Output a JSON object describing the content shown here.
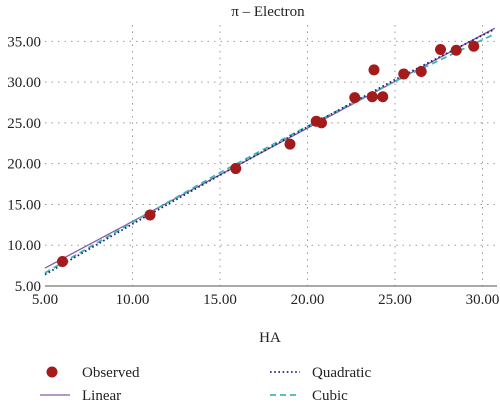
{
  "chart_data": {
    "type": "scatter",
    "title": "π – Electron",
    "xlabel": "HA",
    "ylabel": "",
    "xlim": [
      5,
      31
    ],
    "ylim": [
      5,
      37
    ],
    "x_ticks": [
      5,
      10,
      15,
      20,
      25,
      30
    ],
    "x_tick_labels": [
      "5.00",
      "10.00",
      "15.00",
      "20.00",
      "25.00",
      "30.00"
    ],
    "y_ticks": [
      5,
      10,
      15,
      20,
      25,
      30,
      35
    ],
    "y_tick_labels": [
      "5.00",
      "10.00",
      "15.00",
      "20.00",
      "25.00",
      "30.00",
      "35.00"
    ],
    "grid": true,
    "legend_position": "bottom",
    "series": [
      {
        "name": "Observed",
        "kind": "points",
        "color": "#a31b1b",
        "x": [
          6.0,
          11.0,
          15.9,
          19.0,
          20.5,
          20.8,
          22.7,
          23.7,
          23.8,
          24.3,
          25.5,
          26.5,
          27.6,
          28.5,
          29.5
        ],
        "y": [
          8.0,
          13.7,
          19.4,
          22.4,
          25.2,
          25.0,
          28.1,
          28.2,
          31.5,
          28.2,
          31.0,
          31.3,
          34.0,
          33.9,
          34.4
        ]
      },
      {
        "name": "Linear",
        "kind": "line",
        "color": "#8a5aa8",
        "dash": "solid",
        "x": [
          5,
          30.7
        ],
        "y": [
          7.2,
          36.6
        ]
      },
      {
        "name": "Quadratic",
        "kind": "line",
        "color": "#1a237e",
        "dash": "dotted",
        "x": [
          5,
          10,
          15,
          20,
          25,
          30.7
        ],
        "y": [
          6.4,
          12.6,
          18.6,
          24.5,
          30.3,
          36.5
        ]
      },
      {
        "name": "Cubic",
        "kind": "line",
        "color": "#3fb9b0",
        "dash": "dashed",
        "x": [
          5,
          10,
          15,
          20,
          25,
          30.7
        ],
        "y": [
          6.6,
          12.8,
          18.9,
          24.6,
          30.1,
          35.9
        ]
      }
    ]
  }
}
